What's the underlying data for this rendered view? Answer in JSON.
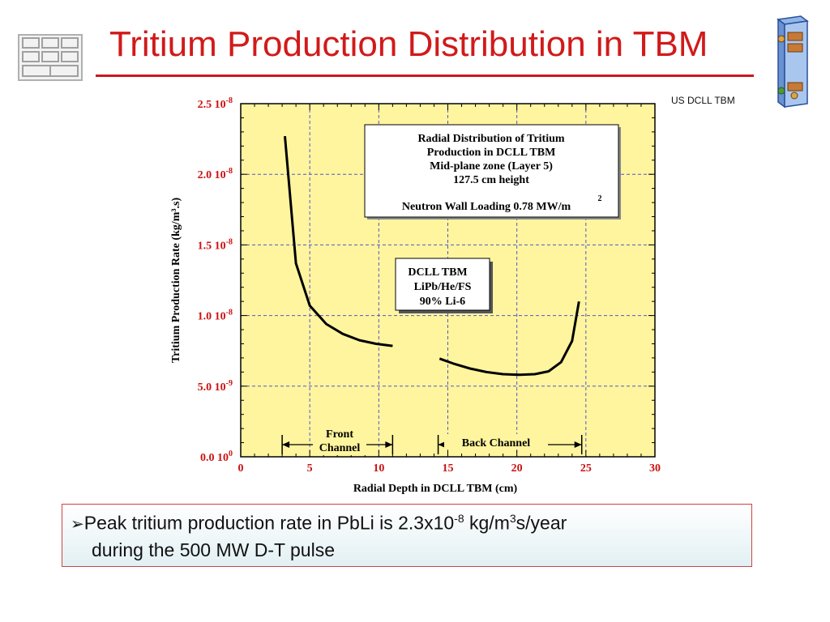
{
  "slide": {
    "title": "Tritium Production Distribution in TBM",
    "tag": "US DCLL TBM",
    "bullet": {
      "line1_a": "Peak tritium production rate in PbLi is 2.3x10",
      "line1_exp1": "-8",
      "line1_b": " kg/m",
      "line1_exp2": "3",
      "line1_c": "s/year",
      "line2": "during the 500 MW D-T pulse"
    }
  },
  "colors": {
    "title": "#d11a1a",
    "plot_bg": "#fff59e",
    "grid": "#5555cc",
    "tick_labels": "#cc1111",
    "curve": "#000000"
  },
  "chart_data": {
    "type": "line",
    "xlabel": "Radial Depth in DCLL TBM (cm)",
    "ylabel": "Tritium Production Rate (kg/m³.s)",
    "xlim": [
      0,
      30
    ],
    "ylim": [
      0,
      2.5e-08
    ],
    "grid": true,
    "x_ticks": [
      {
        "value": 0,
        "label": "0"
      },
      {
        "value": 5,
        "label": "5"
      },
      {
        "value": 10,
        "label": "10"
      },
      {
        "value": 15,
        "label": "15"
      },
      {
        "value": 20,
        "label": "20"
      },
      {
        "value": 25,
        "label": "25"
      },
      {
        "value": 30,
        "label": "30"
      }
    ],
    "y_ticks": [
      {
        "value": 0,
        "mant": "0.0 10",
        "exp": "0"
      },
      {
        "value": 5e-09,
        "mant": "5.0 10",
        "exp": "-9"
      },
      {
        "value": 1e-08,
        "mant": "1.0 10",
        "exp": "-8"
      },
      {
        "value": 1.5e-08,
        "mant": "1.5 10",
        "exp": "-8"
      },
      {
        "value": 2e-08,
        "mant": "2.0 10",
        "exp": "-8"
      },
      {
        "value": 2.5e-08,
        "mant": "2.5 10",
        "exp": "-8"
      }
    ],
    "series": [
      {
        "x": [
          3.2,
          4.0,
          5.0,
          6.2,
          7.4,
          8.6,
          9.8,
          11.0
        ],
        "y": [
          2.27e-08,
          1.37e-08,
          1.07e-08,
          9.4e-09,
          8.7e-09,
          8.25e-09,
          8e-09,
          7.85e-09
        ]
      },
      {
        "x": [
          14.4,
          15.4,
          16.6,
          17.8,
          19.0,
          20.2,
          21.3,
          22.3,
          23.2,
          24.0,
          24.5
        ],
        "y": [
          6.95e-09,
          6.6e-09,
          6.25e-09,
          6e-09,
          5.85e-09,
          5.8e-09,
          5.85e-09,
          6.05e-09,
          6.7e-09,
          8.2e-09,
          1.1e-08
        ]
      }
    ],
    "annotations": {
      "info_box": {
        "line1": "Radial Distribution of Tritium",
        "line2": "Production in DCLL TBM",
        "line3": "Mid-plane zone (Layer 5)",
        "line4": "127.5 cm height",
        "line5": "Neutron Wall Loading 0.78 MW/m",
        "line5_exp": "2"
      },
      "material_box": {
        "line1": "DCLL TBM",
        "line2": "LiPb/He/FS",
        "line3": "90% Li-6"
      },
      "front_channel": {
        "label1": "Front",
        "label2": "Channel",
        "x_range": [
          3,
          11
        ]
      },
      "back_channel": {
        "label": "Back Channel",
        "x_range": [
          14.3,
          24.7
        ]
      }
    }
  }
}
